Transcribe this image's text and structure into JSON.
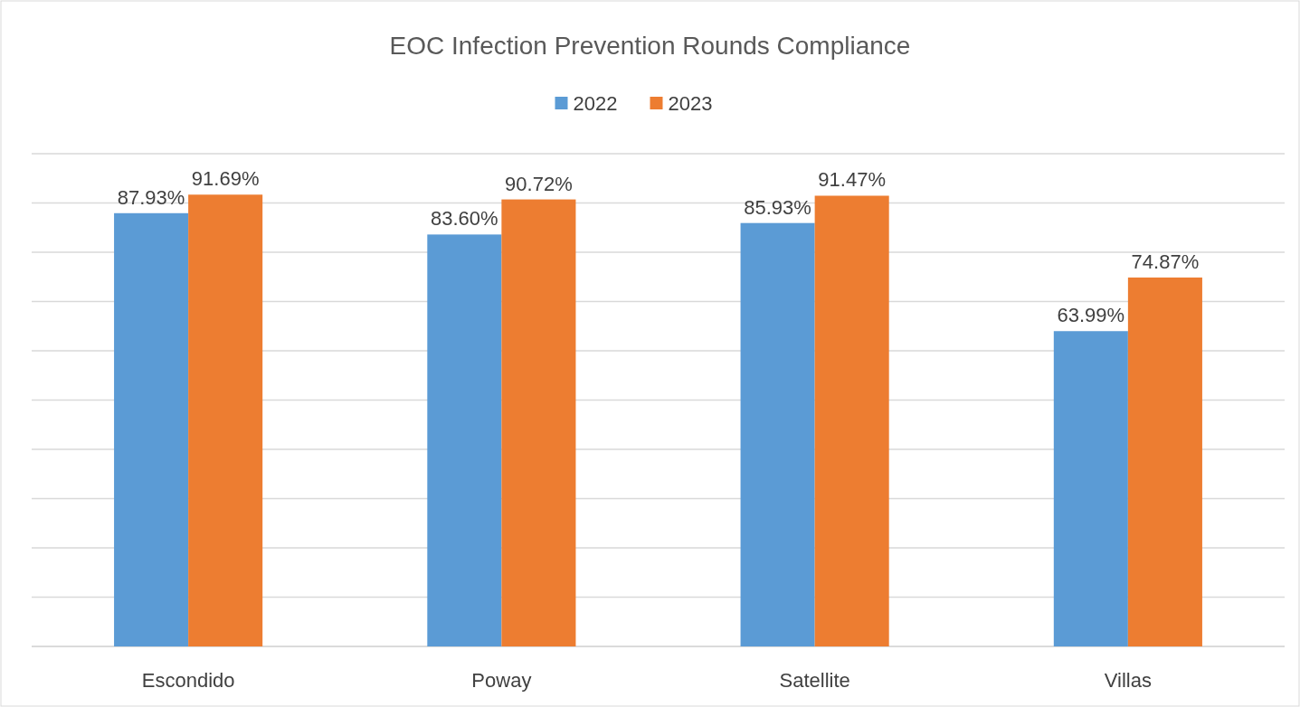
{
  "chart_data": {
    "type": "bar",
    "title": "EOC Infection Prevention Rounds Compliance",
    "categories": [
      "Escondido",
      "Poway",
      "Satellite",
      "Villas"
    ],
    "series": [
      {
        "name": "2022",
        "color": "#5b9bd5",
        "values": [
          87.93,
          83.6,
          85.93,
          63.99
        ],
        "value_labels": [
          "87.93%",
          "83.60%",
          "85.93%",
          "63.99%"
        ]
      },
      {
        "name": "2023",
        "color": "#ed7d31",
        "values": [
          91.69,
          90.72,
          91.47,
          74.87
        ],
        "value_labels": [
          "91.69%",
          "90.72%",
          "91.47%",
          "74.87%"
        ]
      }
    ],
    "ylim": [
      0,
      100
    ],
    "yticks": [
      {
        "value": 0,
        "label": null
      },
      {
        "value": 10,
        "label": null
      },
      {
        "value": 20,
        "label": null
      },
      {
        "value": 30,
        "label": null
      },
      {
        "value": 40,
        "label": null
      },
      {
        "value": 50,
        "label": null
      },
      {
        "value": 60,
        "label": null
      },
      {
        "value": 70,
        "label": null
      },
      {
        "value": 80,
        "label": null
      },
      {
        "value": 90,
        "label": null
      },
      {
        "value": 100,
        "label": null
      }
    ],
    "grid": "y",
    "legend": "top",
    "tick_labels": "x"
  }
}
